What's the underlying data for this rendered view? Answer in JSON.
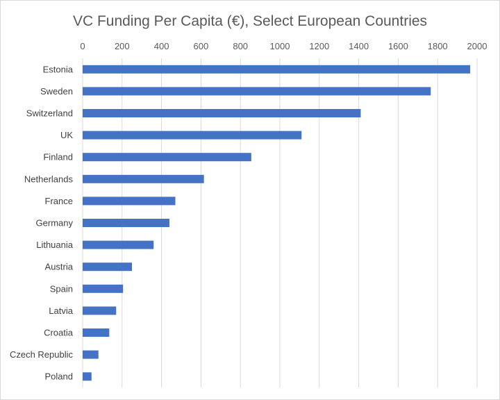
{
  "chart_data": {
    "type": "bar",
    "orientation": "horizontal",
    "title": "VC Funding Per Capita (€), Select European Countries",
    "xlabel": "",
    "ylabel": "",
    "categories": [
      "Estonia",
      "Sweden",
      "Switzerland",
      "UK",
      "Finland",
      "Netherlands",
      "France",
      "Germany",
      "Lithuania",
      "Austria",
      "Spain",
      "Latvia",
      "Croatia",
      "Czech Republic",
      "Poland"
    ],
    "values": [
      1965,
      1765,
      1410,
      1110,
      855,
      615,
      470,
      440,
      360,
      250,
      205,
      170,
      135,
      80,
      45
    ],
    "xlim": [
      0,
      2000
    ],
    "xticks": [
      "0",
      "200",
      "400",
      "600",
      "800",
      "1000",
      "1200",
      "1400",
      "1600",
      "1800",
      "2000"
    ],
    "axis_position": "top",
    "grid": true,
    "legend": "none",
    "bar_color": "#4472C4"
  }
}
